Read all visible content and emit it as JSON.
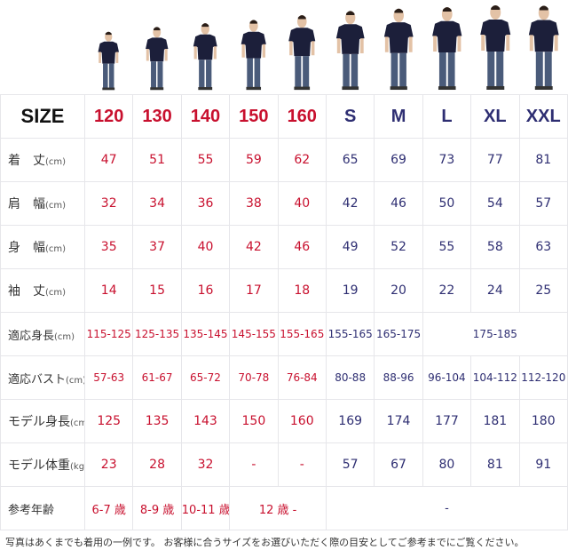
{
  "colors": {
    "kids": "#c8102e",
    "adult": "#2e2e72",
    "shirt": "#1c1f3a"
  },
  "header": {
    "label": "SIZE",
    "sizes": [
      "120",
      "130",
      "140",
      "150",
      "160",
      "S",
      "M",
      "L",
      "XL",
      "XXL"
    ]
  },
  "rows": [
    {
      "label": "着　丈",
      "unit": "(cm)",
      "values": [
        "47",
        "51",
        "55",
        "59",
        "62",
        "65",
        "69",
        "73",
        "77",
        "81"
      ]
    },
    {
      "label": "肩　幅",
      "unit": "(cm)",
      "values": [
        "32",
        "34",
        "36",
        "38",
        "40",
        "42",
        "46",
        "50",
        "54",
        "57"
      ]
    },
    {
      "label": "身　幅",
      "unit": "(cm)",
      "values": [
        "35",
        "37",
        "40",
        "42",
        "46",
        "49",
        "52",
        "55",
        "58",
        "63"
      ]
    },
    {
      "label": "袖　丈",
      "unit": "(cm)",
      "values": [
        "14",
        "15",
        "16",
        "17",
        "18",
        "19",
        "20",
        "22",
        "24",
        "25"
      ]
    }
  ],
  "height_fit": {
    "label": "適応身長",
    "unit": "(cm)",
    "values": [
      "115-125",
      "125-135",
      "135-145",
      "145-155",
      "155-165",
      "155-165",
      "165-175"
    ],
    "large": "175-185"
  },
  "bust_fit": {
    "label": "適応バスト",
    "unit": "(cm)",
    "values": [
      "57-63",
      "61-67",
      "65-72",
      "70-78",
      "76-84",
      "80-88",
      "88-96",
      "96-104",
      "104-112",
      "112-120"
    ]
  },
  "model_height": {
    "label": "モデル身長",
    "unit": "(cm)",
    "values": [
      "125",
      "135",
      "143",
      "150",
      "160",
      "169",
      "174",
      "177",
      "181",
      "180"
    ]
  },
  "model_weight": {
    "label": "モデル体重",
    "unit": "(kg)",
    "values": [
      "23",
      "28",
      "32",
      "-",
      "-",
      "57",
      "67",
      "80",
      "81",
      "91"
    ]
  },
  "age": {
    "label": "参考年齢",
    "values": [
      "6-7 歳",
      "8-9 歳",
      "10-11 歳"
    ],
    "teen": "12 歳 -",
    "adult": "-"
  },
  "footnote": "写真はあくまでも着用の一例です。 お客様に合うサイズをお選びいただく際の目安としてご参考までにご覧ください。"
}
